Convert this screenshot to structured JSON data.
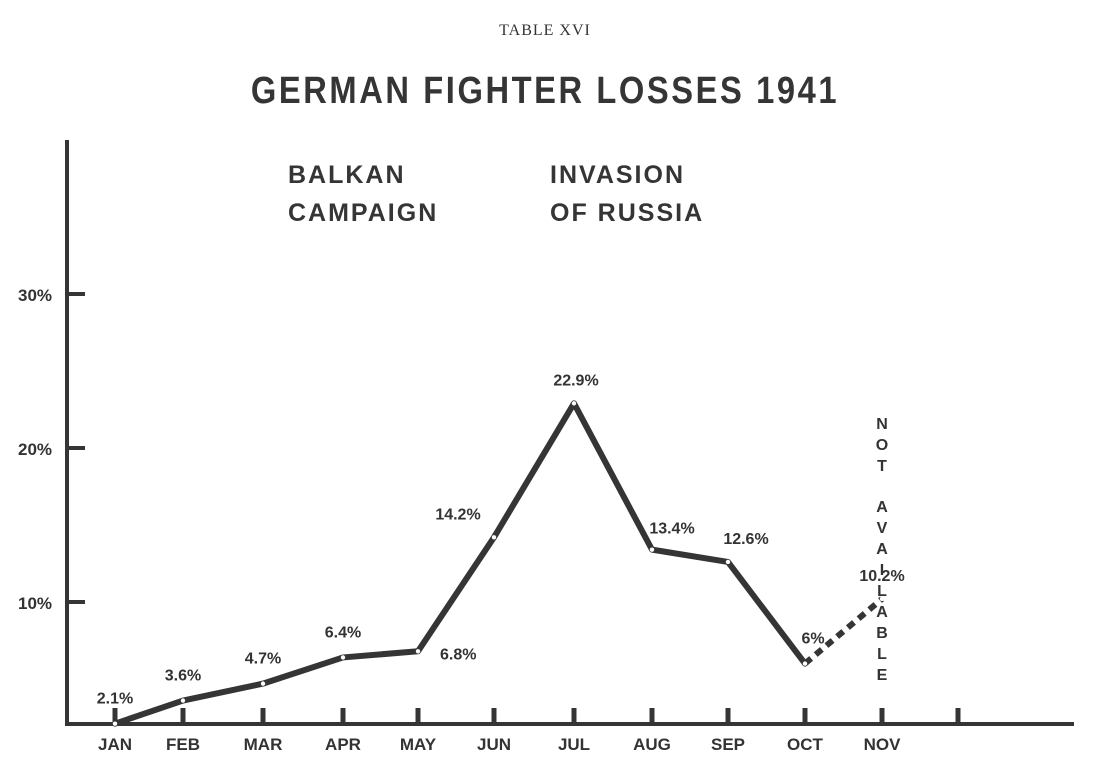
{
  "table_label": "TABLE XVI",
  "chart_data": {
    "type": "line",
    "title": "GERMAN FIGHTER LOSSES 1941",
    "xlabel": "",
    "ylabel": "",
    "categories": [
      "JAN",
      "FEB",
      "MAR",
      "APR",
      "MAY",
      "JUN",
      "JUL",
      "AUG",
      "SEP",
      "OCT",
      "NOV",
      ""
    ],
    "series": [
      {
        "points": [
          {
            "x": "JAN",
            "y": 2.1,
            "label": "2.1%"
          },
          {
            "x": "FEB",
            "y": 3.6,
            "label": "3.6%"
          },
          {
            "x": "MAR",
            "y": 4.7,
            "label": "4.7%"
          },
          {
            "x": "APR",
            "y": 6.4,
            "label": "6.4%"
          },
          {
            "x": "MAY",
            "y": 6.8,
            "label": "6.8%"
          },
          {
            "x": "JUN",
            "y": 14.2,
            "label": "14.2%"
          },
          {
            "x": "JUL",
            "y": 22.9,
            "label": "22.9%"
          },
          {
            "x": "AUG",
            "y": 13.4,
            "label": "13.4%"
          },
          {
            "x": "SEP",
            "y": 12.6,
            "label": "12.6%"
          },
          {
            "x": "OCT",
            "y": 6,
            "label": "6%"
          },
          {
            "x": "",
            "y": 10.2,
            "label": "10.2%"
          }
        ],
        "dashed_from": "OCT",
        "color": "#353535"
      }
    ],
    "y_ticks": [
      {
        "value": 10,
        "label": "10%"
      },
      {
        "value": 20,
        "label": "20%"
      },
      {
        "value": 30,
        "label": "30%"
      }
    ],
    "ylim": [
      0,
      33
    ],
    "annotations": [
      {
        "id": "balkan",
        "lines": [
          "BALKAN",
          "CAMPAIGN"
        ]
      },
      {
        "id": "russia",
        "lines": [
          "INVASION",
          "OF RUSSIA"
        ]
      },
      {
        "id": "not-available",
        "text": "NOT AVAILABLE",
        "at": "NOV"
      }
    ],
    "grid": false,
    "legend": "none"
  }
}
